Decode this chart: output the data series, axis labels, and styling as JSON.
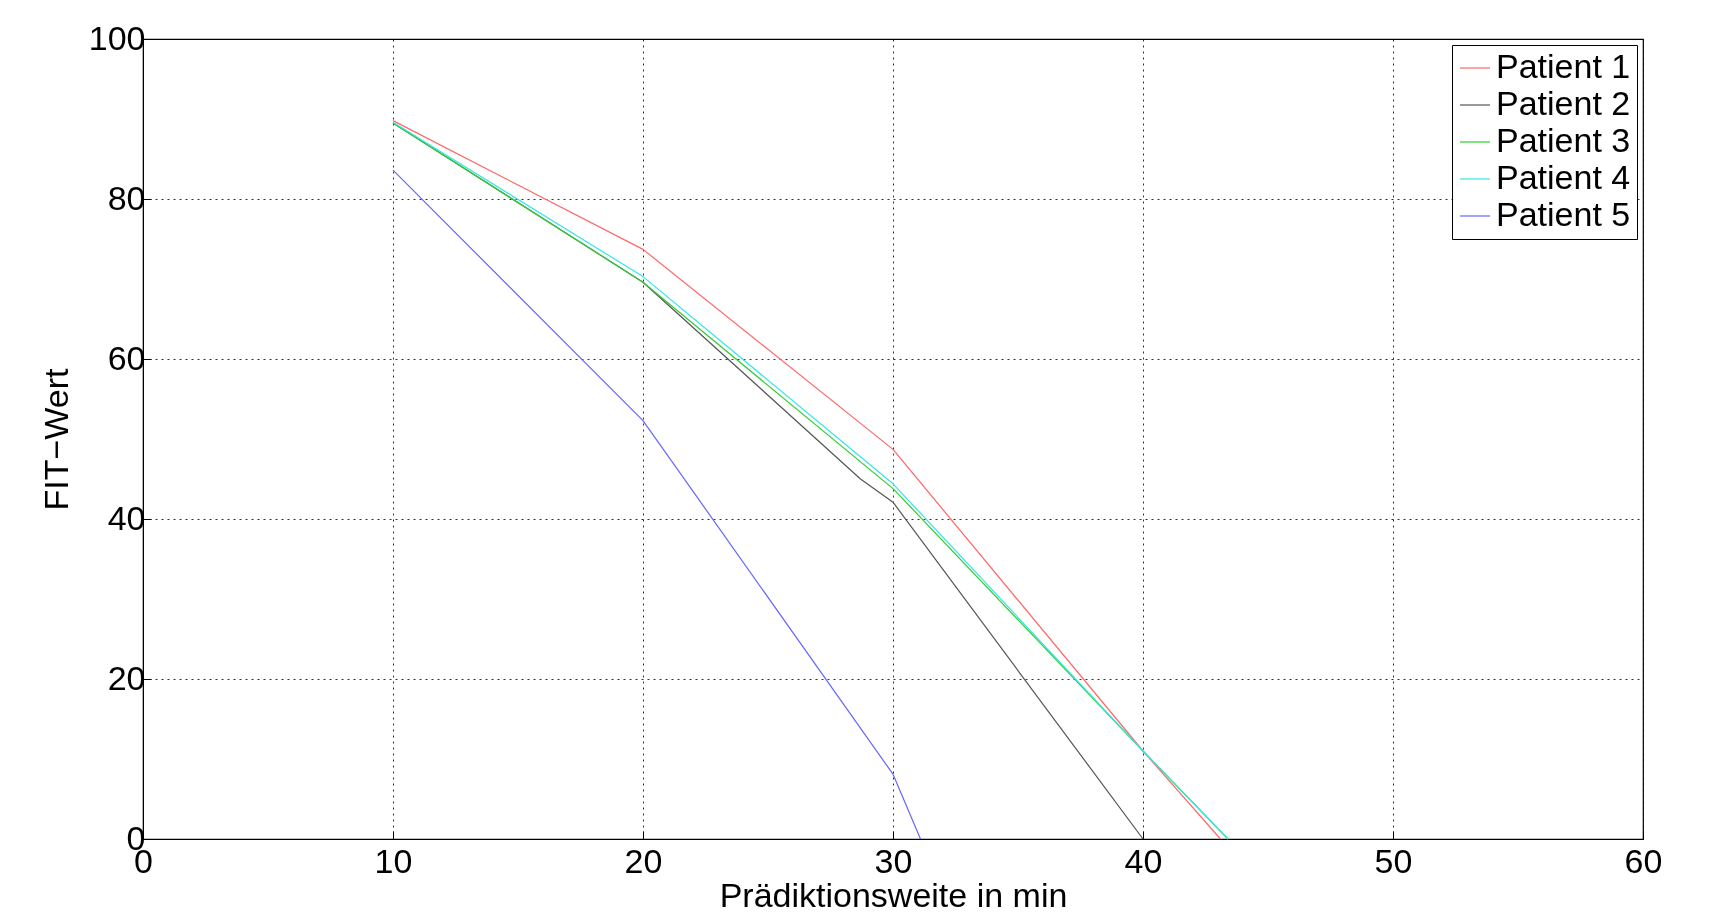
{
  "chart_data": {
    "type": "line",
    "xlabel": "Prädiktionsweite in min",
    "ylabel": "FIT−Wert",
    "xlim": [
      0,
      60
    ],
    "xticks": [
      0,
      10,
      20,
      30,
      40,
      50,
      60
    ],
    "ylim": [
      0,
      100
    ],
    "yticks": [
      0,
      20,
      40,
      60,
      80,
      100
    ],
    "grid": true,
    "legend": "top right",
    "line_style": "solid",
    "series": [
      {
        "name": "Patient 1",
        "color": "#ff6666",
        "x": [
          10,
          20,
          30,
          40,
          43.1
        ],
        "values": [
          89.8,
          73.7,
          48.7,
          11,
          0
        ]
      },
      {
        "name": "Patient 2",
        "color": "#555555",
        "x": [
          10,
          20,
          28.7,
          30,
          40
        ],
        "values": [
          89.5,
          69.6,
          45,
          42.1,
          0
        ]
      },
      {
        "name": "Patient 3",
        "color": "#33cc33",
        "x": [
          10,
          20,
          30,
          40,
          43.4
        ],
        "values": [
          89.5,
          69.6,
          43.8,
          11,
          0
        ]
      },
      {
        "name": "Patient 4",
        "color": "#33e6e6",
        "x": [
          10,
          20,
          30,
          40,
          43.4
        ],
        "values": [
          89.6,
          70.3,
          44.4,
          11,
          0
        ]
      },
      {
        "name": "Patient 5",
        "color": "#6666ff",
        "x": [
          10,
          20,
          30,
          31.1
        ],
        "values": [
          83.6,
          52.3,
          8.1,
          0
        ]
      }
    ]
  }
}
